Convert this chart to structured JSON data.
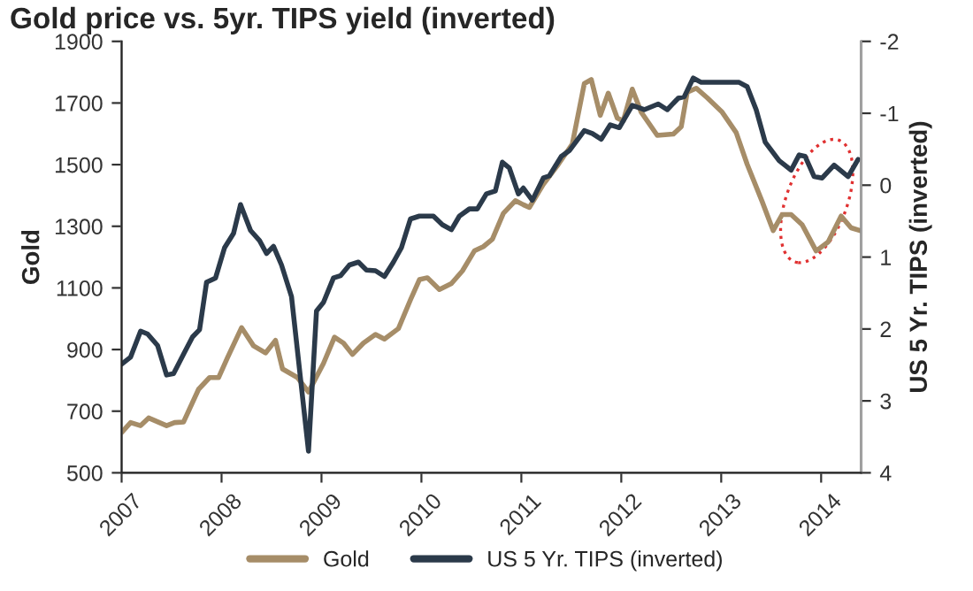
{
  "chart_data": {
    "type": "line",
    "title": "Gold price vs. 5yr. TIPS yield (inverted)",
    "ylabel": "Gold",
    "y2label": "US 5 Yr. TIPS (inverted)",
    "xlim": [
      2007,
      2014.4
    ],
    "xticks": [
      2007,
      2008,
      2009,
      2010,
      2011,
      2012,
      2013,
      2014
    ],
    "ylim": [
      500,
      1900
    ],
    "yticks": [
      500,
      700,
      900,
      1100,
      1300,
      1500,
      1700,
      1900
    ],
    "y2lim": [
      4,
      -2
    ],
    "y2ticks": [
      -2,
      -1,
      0,
      1,
      2,
      3,
      4
    ],
    "grid": false,
    "legend": "bottom",
    "line_style": "solid",
    "marker": "none",
    "series": [
      {
        "name": "Gold",
        "color": "#a68d68",
        "x": [
          2007.0,
          2007.09,
          2007.19,
          2007.27,
          2007.45,
          2007.53,
          2007.62,
          2007.77,
          2007.88,
          2007.97,
          2008.06,
          2008.2,
          2008.32,
          2008.44,
          2008.54,
          2008.61,
          2008.76,
          2008.87,
          2009.02,
          2009.13,
          2009.22,
          2009.31,
          2009.42,
          2009.54,
          2009.63,
          2009.77,
          2009.89,
          2009.98,
          2010.06,
          2010.18,
          2010.3,
          2010.41,
          2010.53,
          2010.62,
          2010.71,
          2010.82,
          2010.94,
          2011.02,
          2011.08,
          2011.22,
          2011.37,
          2011.51,
          2011.63,
          2011.7,
          2011.79,
          2011.87,
          2011.96,
          2012.02,
          2012.11,
          2012.2,
          2012.36,
          2012.52,
          2012.6,
          2012.66,
          2012.75,
          2012.86,
          2013.01,
          2013.15,
          2013.26,
          2013.41,
          2013.52,
          2013.61,
          2013.7,
          2013.81,
          2013.95,
          2014.07,
          2014.2,
          2014.3,
          2014.39
        ],
        "values": [
          631,
          663,
          653,
          678,
          653,
          663,
          665,
          771,
          809,
          809,
          874,
          971,
          912,
          889,
          930,
          837,
          809,
          762,
          855,
          940,
          921,
          884,
          921,
          949,
          934,
          968,
          1061,
          1127,
          1133,
          1095,
          1114,
          1155,
          1220,
          1234,
          1258,
          1342,
          1383,
          1370,
          1361,
          1436,
          1501,
          1567,
          1763,
          1776,
          1660,
          1732,
          1651,
          1642,
          1745,
          1670,
          1595,
          1599,
          1623,
          1735,
          1748,
          1717,
          1670,
          1604,
          1501,
          1380,
          1286,
          1338,
          1338,
          1305,
          1220,
          1249,
          1333,
          1295,
          1286
        ]
      },
      {
        "name": "US 5 Yr. TIPS (inverted)",
        "color": "#2b3a4a",
        "axis": "y2",
        "x": [
          2007.0,
          2007.09,
          2007.19,
          2007.26,
          2007.36,
          2007.45,
          2007.52,
          2007.62,
          2007.71,
          2007.78,
          2007.85,
          2007.94,
          2008.03,
          2008.12,
          2008.19,
          2008.29,
          2008.38,
          2008.45,
          2008.52,
          2008.6,
          2008.7,
          2008.87,
          2008.95,
          2009.02,
          2009.12,
          2009.19,
          2009.28,
          2009.37,
          2009.45,
          2009.54,
          2009.63,
          2009.72,
          2009.8,
          2009.89,
          2009.98,
          2010.12,
          2010.21,
          2010.3,
          2010.38,
          2010.48,
          2010.56,
          2010.65,
          2010.74,
          2010.81,
          2010.88,
          2010.97,
          2011.02,
          2011.11,
          2011.22,
          2011.28,
          2011.4,
          2011.48,
          2011.63,
          2011.71,
          2011.8,
          2011.89,
          2011.98,
          2012.11,
          2012.23,
          2012.37,
          2012.46,
          2012.57,
          2012.63,
          2012.72,
          2012.8,
          2012.95,
          2013.18,
          2013.26,
          2013.35,
          2013.44,
          2013.58,
          2013.7,
          2013.78,
          2013.84,
          2013.93,
          2014.01,
          2014.13,
          2014.27,
          2014.37
        ],
        "values": [
          2.49,
          2.39,
          2.03,
          2.07,
          2.23,
          2.64,
          2.62,
          2.35,
          2.11,
          2.01,
          1.35,
          1.29,
          0.87,
          0.67,
          0.27,
          0.63,
          0.77,
          0.95,
          0.85,
          1.11,
          1.55,
          3.7,
          1.75,
          1.63,
          1.29,
          1.26,
          1.11,
          1.07,
          1.18,
          1.19,
          1.27,
          1.07,
          0.87,
          0.47,
          0.43,
          0.43,
          0.55,
          0.62,
          0.43,
          0.33,
          0.33,
          0.12,
          0.08,
          -0.32,
          -0.24,
          0.12,
          0.04,
          0.21,
          -0.1,
          -0.13,
          -0.4,
          -0.48,
          -0.76,
          -0.72,
          -0.64,
          -0.84,
          -0.8,
          -1.11,
          -1.05,
          -1.13,
          -1.05,
          -1.21,
          -1.23,
          -1.49,
          -1.43,
          -1.43,
          -1.43,
          -1.37,
          -1.05,
          -0.6,
          -0.34,
          -0.21,
          -0.42,
          -0.4,
          -0.12,
          -0.1,
          -0.28,
          -0.12,
          -0.36
        ]
      }
    ]
  }
}
